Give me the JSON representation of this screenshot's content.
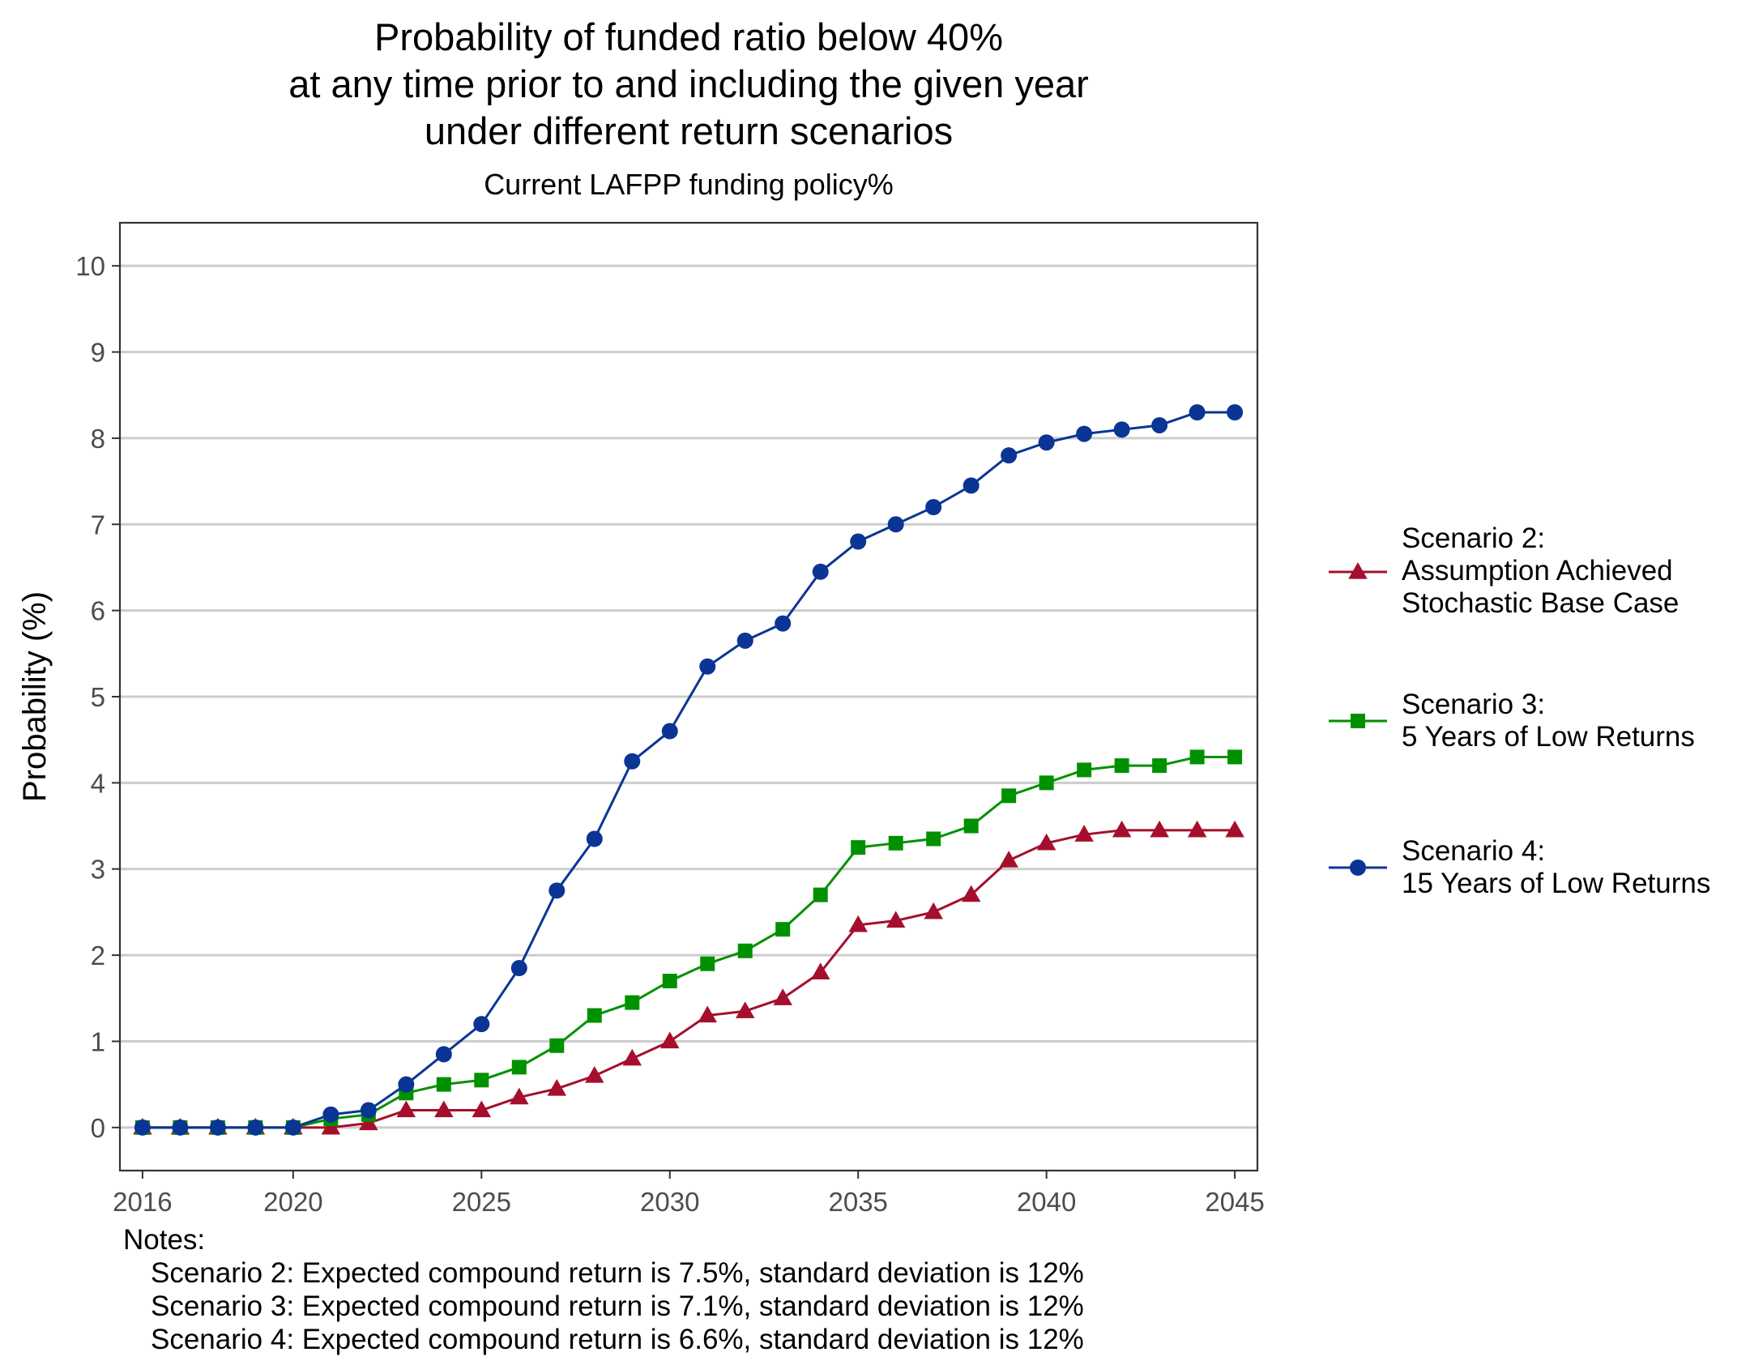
{
  "chart_data": {
    "type": "line",
    "title_lines": [
      "Probability of funded ratio below 40%",
      "at any time prior to and including the given year",
      "under different return scenarios"
    ],
    "subtitle": "Current LAFPP funding policy%",
    "xlabel": "",
    "ylabel": "Probability (%)",
    "xlim": [
      2015.4,
      2045.6
    ],
    "ylim": [
      -0.5,
      10.5
    ],
    "x_ticks": [
      2016,
      2020,
      2025,
      2030,
      2035,
      2040,
      2045
    ],
    "y_ticks": [
      0,
      1,
      2,
      3,
      4,
      5,
      6,
      7,
      8,
      9,
      10
    ],
    "grid": "horizontal major lines",
    "legend_position": "right",
    "x": [
      2016,
      2017,
      2018,
      2019,
      2020,
      2021,
      2022,
      2023,
      2024,
      2025,
      2026,
      2027,
      2028,
      2029,
      2030,
      2031,
      2032,
      2033,
      2034,
      2035,
      2036,
      2037,
      2038,
      2039,
      2040,
      2041,
      2042,
      2043,
      2044,
      2045
    ],
    "series": [
      {
        "name_lines": [
          "Scenario 2:",
          "Assumption Achieved",
          "Stochastic Base Case"
        ],
        "color": "#a50f2d",
        "marker": "triangle",
        "values": [
          0,
          0,
          0,
          0,
          0,
          0,
          0.05,
          0.2,
          0.2,
          0.2,
          0.35,
          0.45,
          0.6,
          0.8,
          1.0,
          1.3,
          1.35,
          1.5,
          1.8,
          2.35,
          2.4,
          2.5,
          2.7,
          3.1,
          3.3,
          3.4,
          3.45,
          3.45,
          3.45,
          3.45
        ]
      },
      {
        "name_lines": [
          "Scenario 3:",
          "5 Years of Low Returns"
        ],
        "color": "#009100",
        "marker": "square",
        "values": [
          0,
          0,
          0,
          0,
          0,
          0.1,
          0.15,
          0.4,
          0.5,
          0.55,
          0.7,
          0.95,
          1.3,
          1.45,
          1.7,
          1.9,
          2.05,
          2.3,
          2.7,
          3.25,
          3.3,
          3.35,
          3.5,
          3.85,
          4.0,
          4.15,
          4.2,
          4.2,
          4.3,
          4.3
        ]
      },
      {
        "name_lines": [
          "Scenario 4:",
          "15 Years of Low Returns"
        ],
        "color": "#0a3595",
        "marker": "circle",
        "values": [
          0,
          0,
          0,
          0,
          0,
          0.15,
          0.2,
          0.5,
          0.85,
          1.2,
          1.85,
          2.75,
          3.35,
          4.25,
          4.6,
          5.35,
          5.65,
          5.85,
          6.45,
          6.8,
          7.0,
          7.2,
          7.45,
          7.8,
          7.95,
          8.05,
          8.1,
          8.15,
          8.3,
          8.3
        ]
      }
    ],
    "notes": {
      "heading": "Notes:",
      "lines": [
        "Scenario 2: Expected compound return is 7.5%, standard deviation is 12%",
        "Scenario 3: Expected compound return is 7.1%, standard deviation is 12%",
        "Scenario 4: Expected compound return is 6.6%, standard deviation is 12%"
      ]
    }
  }
}
